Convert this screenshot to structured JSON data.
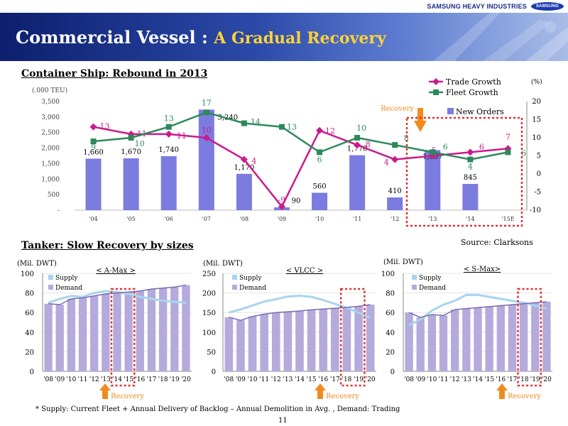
{
  "header": {
    "brand": "SAMSUNG HEAVY INDUSTRIES",
    "logo_text": "SAMSUNG",
    "title_main": "Commercial Vessel : ",
    "title_sub": "A Gradual Recovery"
  },
  "container_section": {
    "title": "Container Ship:  Rebound in 2013"
  },
  "tanker_section": {
    "title": "Tanker:  Slow Recovery by sizes"
  },
  "source": "Source: Clarksons",
  "footnote": "* Supply: Current Fleet + Annual Delivery of Backlog – Annual Demolition in Avg. ,  Demand: Trading",
  "page_number": "11",
  "colors": {
    "bar": "#7b7be0",
    "trade": "#cc1a8a",
    "fleet": "#2b8a5a",
    "supply": "#a8d4f0",
    "demand": "#b4aadc",
    "recovery": "#f28a1e",
    "box": "#e03030"
  },
  "chart_data": [
    {
      "type": "bar+line",
      "title": "Container Ship:  Rebound in 2013",
      "categories": [
        "'04",
        "'05",
        "'06",
        "'07",
        "'08",
        "'09",
        "'10",
        "'11",
        "'12",
        "'13",
        "'14",
        "'15E"
      ],
      "y_left_label": "(.000 TEU)",
      "y_left_ticks": [
        "3,500",
        "3,000",
        "2,500",
        "2,000",
        "1,500",
        "1,000",
        "500",
        "-"
      ],
      "y_left_range": [
        0,
        3500
      ],
      "y_right_label": "(%)",
      "y_right_ticks": [
        "20",
        "15",
        "10",
        "5",
        "0",
        "-5",
        "-10"
      ],
      "y_right_range": [
        -10,
        20
      ],
      "series": [
        {
          "name": "New Orders",
          "type": "bar",
          "axis": "left",
          "values": [
            1660,
            1670,
            1740,
            3240,
            1170,
            90,
            560,
            1770,
            410,
            1937,
            845,
            null
          ],
          "labels": [
            "1,660",
            "1,670",
            "1,740",
            "3,240",
            "1,170",
            "90",
            "560",
            "1,770",
            "410",
            "1,937",
            "845",
            ""
          ]
        },
        {
          "name": "Trade Growth",
          "type": "line",
          "axis": "right",
          "values": [
            13,
            11,
            11,
            10,
            4,
            -9,
            12,
            8,
            4,
            5,
            6,
            7
          ],
          "labels": [
            "13",
            "11",
            "11",
            "10",
            "4",
            "-9",
            "12",
            "8",
            "4",
            "5",
            "6",
            "7"
          ]
        },
        {
          "name": "Fleet Growth",
          "type": "line",
          "axis": "right",
          "values": [
            9,
            10,
            13,
            17,
            14,
            13,
            6,
            10,
            8,
            6,
            4,
            6
          ],
          "labels": [
            "9",
            "10",
            "13",
            "17",
            "14",
            "13",
            "6",
            "10",
            "8",
            "6",
            "4",
            "6"
          ]
        }
      ],
      "annotation": "Recovery"
    },
    {
      "type": "bar+line",
      "title": "< A-Max >",
      "ylabel": "(Mil. DWT)",
      "categories": [
        "'08",
        "'09",
        "'10",
        "'11",
        "'12",
        "'13",
        "'14",
        "'15",
        "'16",
        "'17",
        "'18",
        "'19",
        "'20"
      ],
      "y_ticks": [
        "100",
        "80",
        "60",
        "40",
        "20",
        "0"
      ],
      "ylim": [
        0,
        100
      ],
      "series": [
        {
          "name": "Supply",
          "type": "line",
          "values": [
            70,
            74,
            77,
            76,
            80,
            82,
            81,
            79,
            76,
            74,
            72,
            71,
            70
          ]
        },
        {
          "name": "Demand",
          "type": "bar",
          "values": [
            69,
            68,
            74,
            75,
            77,
            79,
            80,
            81,
            82,
            84,
            85,
            86,
            88
          ]
        }
      ],
      "annotation": "Recovery"
    },
    {
      "type": "bar+line",
      "title": "< VLCC >",
      "ylabel": "(Mil. DWT)",
      "categories": [
        "'08",
        "'09",
        "'10",
        "'11",
        "'12",
        "'13",
        "'14",
        "'15",
        "'16",
        "'17",
        "'18",
        "'19",
        "'20"
      ],
      "y_ticks": [
        "250",
        "200",
        "150",
        "100",
        "50",
        "0"
      ],
      "ylim": [
        0,
        250
      ],
      "series": [
        {
          "name": "Supply",
          "type": "line",
          "values": [
            150,
            158,
            168,
            178,
            184,
            191,
            193,
            190,
            182,
            172,
            162,
            150,
            137
          ]
        },
        {
          "name": "Demand",
          "type": "bar",
          "values": [
            138,
            130,
            140,
            146,
            150,
            152,
            154,
            157,
            159,
            161,
            163,
            166,
            170
          ]
        }
      ],
      "annotation": "Recovery"
    },
    {
      "type": "bar+line",
      "title": "< S-Max>",
      "ylabel": "(Mil. DWT)",
      "categories": [
        "'08",
        "'09",
        "'10",
        "'11",
        "'12",
        "'13",
        "'14",
        "'15",
        "'16",
        "'17",
        "'18",
        "'19",
        "'20"
      ],
      "y_ticks": [
        "100",
        "80",
        "60",
        "40",
        "20",
        "0"
      ],
      "ylim": [
        0,
        100
      ],
      "series": [
        {
          "name": "Supply",
          "type": "line",
          "values": [
            47,
            53,
            62,
            68,
            72,
            78,
            78,
            76,
            74,
            72,
            70,
            67,
            64
          ]
        },
        {
          "name": "Demand",
          "type": "bar",
          "values": [
            60,
            55,
            58,
            57,
            63,
            64,
            65,
            66,
            67,
            68,
            69,
            70,
            71
          ]
        }
      ],
      "annotation": "Recovery"
    }
  ]
}
